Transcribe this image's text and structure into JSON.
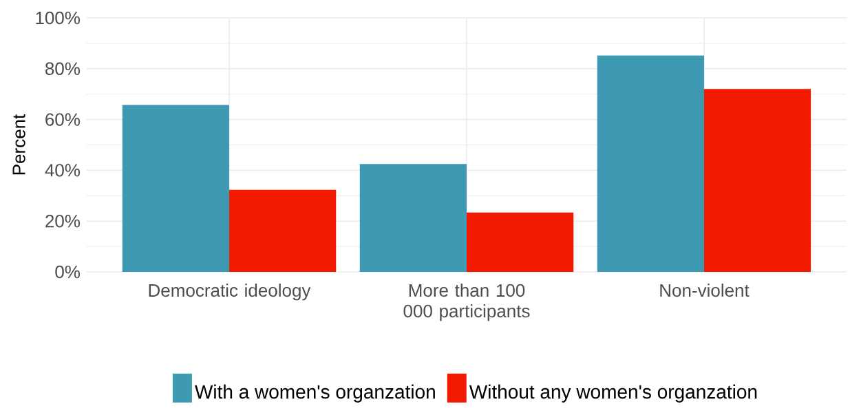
{
  "chart_data": {
    "type": "bar",
    "ylabel": "Percent",
    "categories": [
      "Democratic ideology",
      "More than 100 000 participants",
      "Non-violent"
    ],
    "series": [
      {
        "name": "With a women's organzation",
        "color": "#3d9ab2",
        "values": [
          65.7,
          42.5,
          85.2
        ]
      },
      {
        "name": "Without any women's organzation",
        "color": "#f21a00",
        "values": [
          32.3,
          23.4,
          72.0
        ]
      }
    ],
    "ylim": [
      0,
      100
    ],
    "yticks": [
      {
        "value": 0,
        "label": "0%"
      },
      {
        "value": 20,
        "label": "20%"
      },
      {
        "value": 40,
        "label": "40%"
      },
      {
        "value": 60,
        "label": "60%"
      },
      {
        "value": 80,
        "label": "80%"
      },
      {
        "value": 100,
        "label": "100%"
      }
    ],
    "grid": true,
    "legend": "bottom"
  }
}
